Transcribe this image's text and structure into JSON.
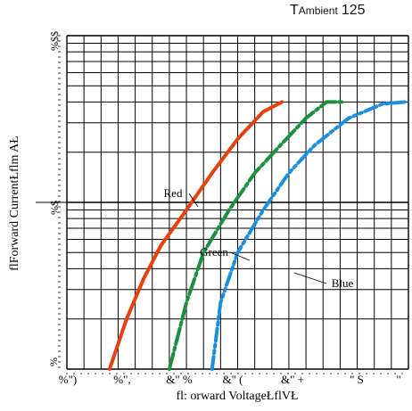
{
  "header": {
    "t_big": "T",
    "t_small": "Ambient",
    "t_value": "125"
  },
  "chart_data": {
    "type": "line",
    "xlabel": "fl: orward  VoltageŁflVŁ",
    "ylabel": "flForward  CurrentŁflm AŁ",
    "xlim": [
      1.6,
      3.6
    ],
    "ylog": true,
    "ylim": [
      1,
      100
    ],
    "grid": true,
    "x_tick_labels": [
      "%\")",
      "%\",",
      "&\" %",
      "&\" (",
      "&\" +",
      "\" S",
      "\""
    ],
    "y_tick_labels": [
      "%$$",
      "%$",
      "%"
    ],
    "series": [
      {
        "name": "Red",
        "color": "#e8400c",
        "style": "solid",
        "points": [
          [
            1.85,
            1
          ],
          [
            1.95,
            2
          ],
          [
            2.05,
            3.5
          ],
          [
            2.15,
            5.5
          ],
          [
            2.3,
            9
          ],
          [
            2.45,
            15
          ],
          [
            2.6,
            24
          ],
          [
            2.75,
            35
          ],
          [
            2.86,
            40
          ]
        ]
      },
      {
        "name": "Green",
        "color": "#1a8f3c",
        "style": "dashdot",
        "points": [
          [
            2.2,
            1
          ],
          [
            2.3,
            2.5
          ],
          [
            2.4,
            5
          ],
          [
            2.55,
            9
          ],
          [
            2.7,
            15
          ],
          [
            2.85,
            22
          ],
          [
            3.0,
            32
          ],
          [
            3.12,
            40
          ],
          [
            3.22,
            40
          ]
        ]
      },
      {
        "name": "Blue",
        "color": "#1a8fe0",
        "style": "dashdotdot",
        "points": [
          [
            2.45,
            1
          ],
          [
            2.5,
            2.5
          ],
          [
            2.6,
            5
          ],
          [
            2.75,
            9
          ],
          [
            2.9,
            15
          ],
          [
            3.05,
            22
          ],
          [
            3.25,
            32
          ],
          [
            3.45,
            39
          ],
          [
            3.58,
            40
          ]
        ]
      }
    ],
    "annotations": [
      "Red",
      "Green",
      "Blue"
    ]
  }
}
